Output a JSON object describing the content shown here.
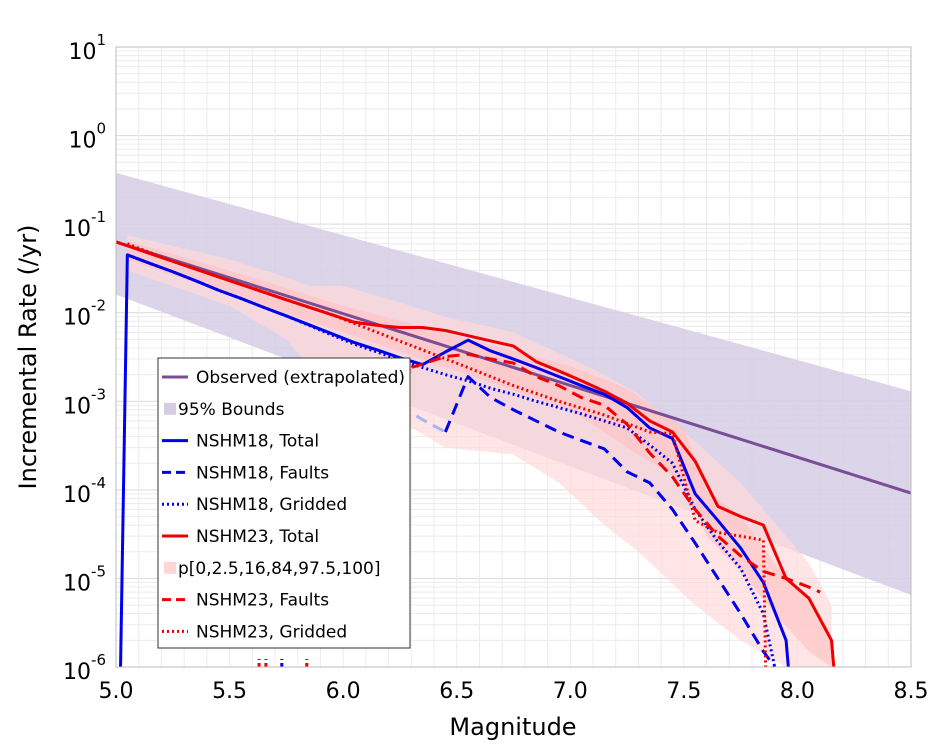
{
  "chart_data": {
    "type": "line",
    "xlabel": "Magnitude",
    "ylabel": "Incremental Rate (/yr)",
    "xlim": [
      5.0,
      8.5
    ],
    "ylim": [
      1e-06,
      10
    ],
    "y_scale": "log",
    "grid": true,
    "legend_position": "lower-left",
    "x_ticks": [
      {
        "value": 5.0,
        "label": "5.0"
      },
      {
        "value": 5.5,
        "label": "5.5"
      },
      {
        "value": 6.0,
        "label": "6.0"
      },
      {
        "value": 6.5,
        "label": "6.5"
      },
      {
        "value": 7.0,
        "label": "7.0"
      },
      {
        "value": 7.5,
        "label": "7.5"
      },
      {
        "value": 8.0,
        "label": "8.0"
      },
      {
        "value": 8.5,
        "label": "8.5"
      }
    ],
    "y_ticks": [
      {
        "exp": 1,
        "base": "10",
        "sup": "1"
      },
      {
        "exp": 0,
        "base": "10",
        "sup": "0"
      },
      {
        "exp": -1,
        "base": "10",
        "sup": "-1"
      },
      {
        "exp": -2,
        "base": "10",
        "sup": "-2"
      },
      {
        "exp": -3,
        "base": "10",
        "sup": "-3"
      },
      {
        "exp": -4,
        "base": "10",
        "sup": "-4"
      },
      {
        "exp": -5,
        "base": "10",
        "sup": "-5"
      },
      {
        "exp": -6,
        "base": "10",
        "sup": "-6"
      }
    ],
    "legend": [
      {
        "label": "Observed (extrapolated)",
        "color": "#7a4e96",
        "style": "solid"
      },
      {
        "label": "95% Bounds",
        "color": "#d6cce4",
        "style": "box"
      },
      {
        "label": "NSHM18, Total",
        "color": "#0000ee",
        "style": "solid"
      },
      {
        "label": "NSHM18, Faults",
        "color": "#0000ee",
        "style": "dashed"
      },
      {
        "label": "NSHM18, Gridded",
        "color": "#0000ee",
        "style": "dotted"
      },
      {
        "label": "NSHM23, Total",
        "color": "#ee0000",
        "style": "solid"
      },
      {
        "label": "p[0,2.5,16,84,97.5,100]",
        "color": "#ffd6d6",
        "style": "box"
      },
      {
        "label": "NSHM23, Faults",
        "color": "#ee0000",
        "style": "dashed"
      },
      {
        "label": "NSHM23, Gridded",
        "color": "#ee0000",
        "style": "dotted"
      }
    ],
    "bounds_95": {
      "x": [
        5.0,
        8.5
      ],
      "upper": [
        0.38,
        0.0013
      ],
      "lower": [
        0.016,
        6.5e-06
      ],
      "color": "#d6cce4"
    },
    "percentile_bands": [
      {
        "name": "p0-100",
        "color": "#ffdada",
        "x": [
          5.05,
          5.5,
          5.75,
          5.85,
          6.0,
          6.25,
          6.45,
          6.75,
          6.95,
          7.15,
          7.3,
          7.55,
          7.75,
          7.95,
          8.05,
          8.15
        ],
        "upper": [
          0.075,
          0.04,
          0.025,
          0.02,
          0.02,
          0.013,
          0.009,
          0.006,
          0.0035,
          0.002,
          0.0012,
          0.00035,
          0.00012,
          3e-05,
          1.5e-05,
          5e-06
        ],
        "lower": [
          0.03,
          0.012,
          0.005,
          0.0025,
          0.0012,
          0.0006,
          0.0003,
          0.00025,
          0.00012,
          4e-05,
          2e-05,
          5e-06,
          2e-06,
          1e-06,
          1e-06,
          1e-06
        ]
      },
      {
        "name": "p2.5-97.5",
        "color": "#ffc4c4",
        "x": [
          5.05,
          5.5,
          6.0,
          6.5,
          7.0,
          7.25,
          7.5,
          7.6,
          7.75,
          7.9,
          8.05,
          8.15
        ],
        "upper": [
          0.065,
          0.03,
          0.012,
          0.0055,
          0.0025,
          0.0014,
          0.0005,
          0.0001,
          5e-05,
          1.5e-05,
          6e-06,
          2e-06
        ],
        "lower": [
          0.04,
          0.016,
          0.006,
          0.0022,
          0.0008,
          0.0003,
          0.00012,
          3e-05,
          1.2e-05,
          4e-06,
          1.5e-06,
          1e-06
        ]
      }
    ],
    "series": [
      {
        "name": "Observed (extrapolated)",
        "color": "#7a4e96",
        "style": "solid",
        "width": 3,
        "x": [
          5.0,
          8.5
        ],
        "y": [
          0.063,
          9.2e-05
        ]
      },
      {
        "name": "NSHM18, Total",
        "color": "#0000ee",
        "style": "solid",
        "width": 3,
        "x": [
          5.02,
          5.05,
          5.15,
          5.25,
          5.35,
          5.45,
          5.55,
          5.65,
          5.75,
          5.85,
          5.95,
          6.05,
          6.15,
          6.25,
          6.35,
          6.45,
          6.55,
          6.65,
          6.75,
          6.85,
          6.95,
          7.05,
          7.15,
          7.25,
          7.35,
          7.45,
          7.55,
          7.65,
          7.75,
          7.85,
          7.95,
          7.96
        ],
        "y": [
          1e-06,
          0.045,
          0.036,
          0.029,
          0.023,
          0.018,
          0.0145,
          0.0115,
          0.0092,
          0.0073,
          0.0058,
          0.0046,
          0.0038,
          0.0031,
          0.0026,
          0.0036,
          0.0049,
          0.0037,
          0.003,
          0.0024,
          0.0019,
          0.0015,
          0.0012,
          0.00085,
          0.0005,
          0.00038,
          9e-05,
          4.5e-05,
          2.2e-05,
          9e-06,
          2e-06,
          1e-06
        ]
      },
      {
        "name": "NSHM18, Faults",
        "color": "#0000ee",
        "style": "dashed",
        "width": 3,
        "x": [
          6.45,
          6.55,
          6.65,
          6.75,
          6.85,
          6.95,
          7.05,
          7.15,
          7.25,
          7.35,
          7.45,
          7.55,
          7.65,
          7.75,
          7.85,
          7.9
        ],
        "y": [
          0.00045,
          0.0019,
          0.0011,
          0.0008,
          0.0006,
          0.00045,
          0.00036,
          0.00029,
          0.00016,
          0.00012,
          6e-05,
          2.5e-05,
          1e-05,
          4e-06,
          1.5e-06,
          1e-06
        ]
      },
      {
        "name": "NSHM18, Faults (faded segment)",
        "color": "#a8b4f4",
        "style": "dashed",
        "width": 3,
        "x": [
          5.95,
          6.05,
          6.15,
          6.25,
          6.3,
          6.35,
          6.45
        ],
        "y": [
          0.00015,
          0.0004,
          0.00065,
          0.00074,
          0.00074,
          0.00062,
          0.00045
        ]
      },
      {
        "name": "NSHM18, Gridded",
        "color": "#0000ee",
        "style": "dotted",
        "width": 3,
        "x": [
          5.05,
          5.15,
          5.25,
          5.35,
          5.45,
          5.55,
          5.65,
          5.75,
          5.85,
          5.95,
          6.05,
          6.15,
          6.25,
          6.35,
          6.45,
          6.55,
          6.65,
          6.75,
          6.85,
          6.95,
          7.05,
          7.15,
          7.25,
          7.35,
          7.45,
          7.55,
          7.65,
          7.75,
          7.85,
          7.9
        ],
        "y": [
          0.045,
          0.036,
          0.029,
          0.023,
          0.018,
          0.0145,
          0.0115,
          0.0092,
          0.0072,
          0.0056,
          0.0044,
          0.0036,
          0.0029,
          0.0024,
          0.002,
          0.0017,
          0.0014,
          0.0012,
          0.001,
          0.00085,
          0.00072,
          0.0006,
          0.0005,
          0.00032,
          0.0002,
          6e-05,
          2.6e-05,
          1.3e-05,
          4e-06,
          1e-06
        ]
      },
      {
        "name": "NSHM23, Total",
        "color": "#ee0000",
        "style": "solid",
        "width": 3,
        "x": [
          5.0,
          5.25,
          5.5,
          5.75,
          5.95,
          6.05,
          6.15,
          6.25,
          6.35,
          6.45,
          6.55,
          6.65,
          6.75,
          6.85,
          6.95,
          7.05,
          7.15,
          7.25,
          7.35,
          7.45,
          7.55,
          7.65,
          7.75,
          7.85,
          7.95,
          8.05,
          8.15,
          8.16
        ],
        "y": [
          0.063,
          0.038,
          0.023,
          0.014,
          0.0095,
          0.0078,
          0.0072,
          0.0068,
          0.0068,
          0.0063,
          0.0055,
          0.0048,
          0.0042,
          0.0028,
          0.0022,
          0.0017,
          0.0013,
          0.00095,
          0.0006,
          0.00045,
          0.00021,
          6.5e-05,
          5e-05,
          4e-05,
          1e-05,
          6e-06,
          2e-06,
          1e-06
        ]
      },
      {
        "name": "NSHM23, Faults",
        "color": "#ee0000",
        "style": "dashed",
        "width": 3,
        "x": [
          6.3,
          6.45,
          6.55,
          6.65,
          6.75,
          6.85,
          6.95,
          7.05,
          7.15,
          7.25,
          7.35,
          7.45,
          7.55,
          7.65,
          7.75,
          7.85,
          7.95,
          8.05,
          8.1
        ],
        "y": [
          0.0024,
          0.0032,
          0.0034,
          0.003,
          0.0027,
          0.0019,
          0.0015,
          0.0011,
          0.0009,
          0.00055,
          0.00026,
          0.00014,
          6e-05,
          3e-05,
          1.8e-05,
          1.2e-05,
          1e-05,
          8e-06,
          7e-06
        ]
      },
      {
        "name": "NSHM23, Faults (faded segment)",
        "color": "#ffb8b8",
        "style": "dashed",
        "width": 3,
        "x": [
          6.05,
          6.12,
          6.15,
          6.2,
          6.25,
          6.3
        ],
        "y": [
          0.0004,
          0.00025,
          0.00015,
          0.00025,
          0.0005,
          0.0024
        ]
      },
      {
        "name": "NSHM23, Gridded",
        "color": "#ee0000",
        "style": "dotted",
        "width": 3,
        "x": [
          5.05,
          5.25,
          5.5,
          5.75,
          5.95,
          6.15,
          6.35,
          6.55,
          6.75,
          6.95,
          7.15,
          7.35,
          7.45,
          7.55,
          7.65,
          7.75,
          7.85,
          7.86
        ],
        "y": [
          0.06,
          0.038,
          0.023,
          0.014,
          0.0095,
          0.006,
          0.0038,
          0.0024,
          0.0015,
          0.001,
          0.0007,
          0.00045,
          0.00043,
          4.5e-05,
          3.3e-05,
          3e-05,
          2.7e-05,
          1e-06
        ]
      }
    ],
    "low_spikes": [
      {
        "x": 5.63,
        "color": "#ee0000"
      },
      {
        "x": 5.66,
        "color": "#ee0000"
      },
      {
        "x": 5.73,
        "color": "#0000ee"
      },
      {
        "x": 5.84,
        "color": "#ee0000"
      }
    ]
  }
}
